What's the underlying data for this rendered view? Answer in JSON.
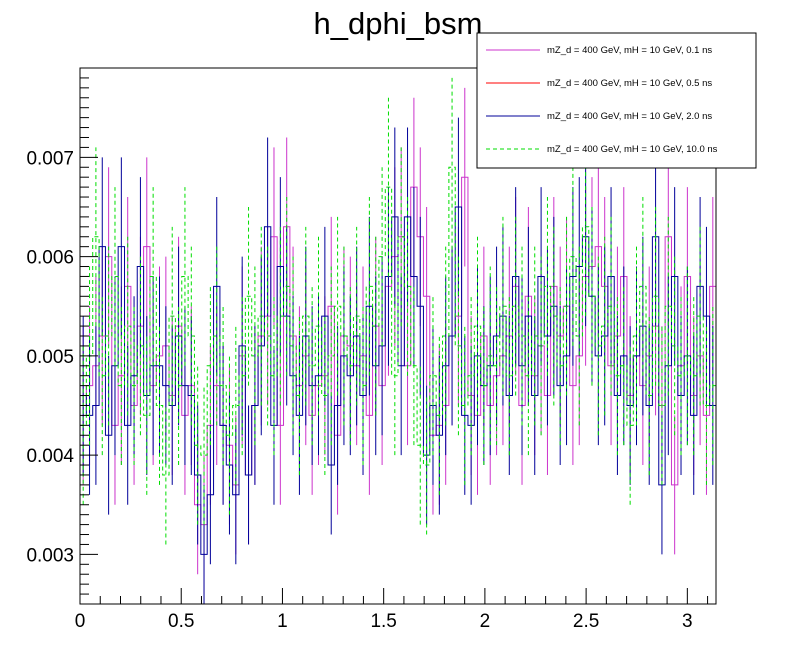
{
  "chart_data": {
    "type": "step-histogram",
    "title": "h_dphi_bsm",
    "xlabel": "",
    "ylabel": "",
    "xlim": [
      0,
      3.1416
    ],
    "ylim": [
      0.0025,
      0.0079
    ],
    "x_ticks": [
      0,
      0.5,
      1,
      1.5,
      2,
      2.5,
      3
    ],
    "x_tick_labels": [
      "0",
      "0.5",
      "1",
      "1.5",
      "2",
      "2.5",
      "3"
    ],
    "y_ticks": [
      0.003,
      0.004,
      0.005,
      0.006,
      0.007
    ],
    "y_tick_labels": [
      "0.003",
      "0.004",
      "0.005",
      "0.006",
      "0.007"
    ],
    "grid": false,
    "legend_position": "top-right",
    "bins": 100,
    "series": [
      {
        "name": "mZ_d = 400 GeV, mH = 10 GeV, 0.1 ns",
        "color": "#cc33cc",
        "dash": "solid",
        "values": [
          0.0045,
          0.0047,
          0.0049,
          0.0052,
          0.006,
          0.0043,
          0.0048,
          0.0057,
          0.0045,
          0.0053,
          0.0061,
          0.0047,
          0.005,
          0.0051,
          0.0046,
          0.0053,
          0.0044,
          0.0047,
          0.0035,
          0.0033,
          0.0043,
          0.0047,
          0.0043,
          0.0041,
          0.0037,
          0.005,
          0.0038,
          0.0045,
          0.0052,
          0.0054,
          0.0062,
          0.0043,
          0.0063,
          0.0052,
          0.0047,
          0.005,
          0.0044,
          0.0047,
          0.0048,
          0.0055,
          0.0042,
          0.0052,
          0.0051,
          0.0049,
          0.005,
          0.0044,
          0.0053,
          0.0047,
          0.0057,
          0.006,
          0.0062,
          0.0049,
          0.0067,
          0.0062,
          0.0056,
          0.0042,
          0.0043,
          0.0045,
          0.0052,
          0.0054,
          0.0068,
          0.0046,
          0.0044,
          0.0052,
          0.0045,
          0.0048,
          0.005,
          0.0052,
          0.0057,
          0.0045,
          0.0056,
          0.0048,
          0.0051,
          0.0046,
          0.0057,
          0.0052,
          0.0055,
          0.0047,
          0.005,
          0.0058,
          0.0059,
          0.0061,
          0.0057,
          0.0049,
          0.0052,
          0.0058,
          0.0046,
          0.005,
          0.0047,
          0.005,
          0.0053,
          0.0045,
          0.0062,
          0.0037,
          0.0049,
          0.0058,
          0.0046,
          0.005,
          0.0044,
          0.0057
        ],
        "errors": [
          0.0008,
          0.0008,
          0.0009,
          0.0009,
          0.0009,
          0.0008,
          0.0009,
          0.0009,
          0.0008,
          0.0009,
          0.0009,
          0.0008,
          0.0009,
          0.0009,
          0.0008,
          0.0009,
          0.0008,
          0.0008,
          0.0007,
          0.0007,
          0.0008,
          0.0008,
          0.0008,
          0.0008,
          0.0007,
          0.0009,
          0.0007,
          0.0008,
          0.0009,
          0.0009,
          0.0009,
          0.0008,
          0.0009,
          0.0009,
          0.0008,
          0.0009,
          0.0008,
          0.0008,
          0.0008,
          0.0009,
          0.0008,
          0.0009,
          0.0009,
          0.0008,
          0.0009,
          0.0008,
          0.0009,
          0.0008,
          0.0009,
          0.0009,
          0.0009,
          0.0008,
          0.0009,
          0.0009,
          0.0009,
          0.0008,
          0.0008,
          0.0008,
          0.0009,
          0.0009,
          0.0009,
          0.0008,
          0.0008,
          0.0009,
          0.0008,
          0.0008,
          0.0009,
          0.0009,
          0.0009,
          0.0008,
          0.0009,
          0.0008,
          0.0009,
          0.0008,
          0.0009,
          0.0009,
          0.0009,
          0.0008,
          0.0009,
          0.0009,
          0.0009,
          0.0009,
          0.0009,
          0.0008,
          0.0009,
          0.0009,
          0.0008,
          0.0009,
          0.0008,
          0.0009,
          0.0009,
          0.0008,
          0.0009,
          0.0007,
          0.0008,
          0.0009,
          0.0008,
          0.0009,
          0.0008,
          0.0009
        ]
      },
      {
        "name": "mZ_d = 400 GeV, mH = 10 GeV, 0.5 ns",
        "color": "#ff0000",
        "dash": "solid",
        "values": []
      },
      {
        "name": "mZ_d = 400 GeV, mH = 10 GeV, 2.0 ns",
        "color": "#000099",
        "dash": "solid",
        "values": [
          0.0046,
          0.0044,
          0.0045,
          0.0061,
          0.0042,
          0.0049,
          0.0061,
          0.0043,
          0.0048,
          0.0059,
          0.0046,
          0.0049,
          0.0049,
          0.0047,
          0.0045,
          0.0052,
          0.0047,
          0.0046,
          0.0038,
          0.003,
          0.0036,
          0.0057,
          0.0043,
          0.0039,
          0.0036,
          0.0051,
          0.0038,
          0.0045,
          0.0051,
          0.0063,
          0.0043,
          0.0059,
          0.0054,
          0.0048,
          0.0044,
          0.0052,
          0.0047,
          0.0048,
          0.0054,
          0.0039,
          0.0045,
          0.005,
          0.0048,
          0.0052,
          0.0046,
          0.0055,
          0.0049,
          0.0051,
          0.0058,
          0.0064,
          0.0049,
          0.0064,
          0.0058,
          0.0055,
          0.004,
          0.0045,
          0.0042,
          0.0049,
          0.0052,
          0.0065,
          0.0044,
          0.0043,
          0.005,
          0.0047,
          0.0049,
          0.0052,
          0.0054,
          0.0046,
          0.0058,
          0.0049,
          0.0054,
          0.0046,
          0.0058,
          0.0052,
          0.0055,
          0.0047,
          0.005,
          0.0058,
          0.0059,
          0.0062,
          0.0056,
          0.005,
          0.0052,
          0.0058,
          0.0046,
          0.005,
          0.0045,
          0.005,
          0.0053,
          0.0045,
          0.0062,
          0.0037,
          0.0049,
          0.0058,
          0.0046,
          0.005,
          0.0044,
          0.0057,
          0.0054,
          0.0045
        ],
        "errors": [
          0.0008,
          0.0008,
          0.0008,
          0.0009,
          0.0008,
          0.0009,
          0.0009,
          0.0008,
          0.0008,
          0.0009,
          0.0008,
          0.0009,
          0.0009,
          0.0008,
          0.0008,
          0.0009,
          0.0008,
          0.0008,
          0.0007,
          0.0007,
          0.0007,
          0.0009,
          0.0008,
          0.0007,
          0.0007,
          0.0009,
          0.0007,
          0.0008,
          0.0009,
          0.0009,
          0.0008,
          0.0009,
          0.0009,
          0.0008,
          0.0008,
          0.0009,
          0.0008,
          0.0008,
          0.0009,
          0.0007,
          0.0008,
          0.0009,
          0.0008,
          0.0009,
          0.0008,
          0.0009,
          0.0009,
          0.0009,
          0.0009,
          0.0009,
          0.0009,
          0.0009,
          0.0009,
          0.0009,
          0.0007,
          0.0008,
          0.0008,
          0.0009,
          0.0009,
          0.0009,
          0.0008,
          0.0008,
          0.0009,
          0.0008,
          0.0009,
          0.0009,
          0.0009,
          0.0008,
          0.0009,
          0.0009,
          0.0009,
          0.0008,
          0.0009,
          0.0009,
          0.0009,
          0.0008,
          0.0009,
          0.0009,
          0.0009,
          0.0009,
          0.0009,
          0.0009,
          0.0009,
          0.0009,
          0.0008,
          0.0009,
          0.0008,
          0.0009,
          0.0009,
          0.0008,
          0.0009,
          0.0007,
          0.0009,
          0.0009,
          0.0008,
          0.0009,
          0.0008,
          0.0009,
          0.0009,
          0.0008
        ]
      },
      {
        "name": "mZ_d = 400 GeV, mH = 10 GeV, 10.0 ns",
        "color": "#00dd00",
        "dash": "dashed",
        "values": [
          0.0043,
          0.005,
          0.0062,
          0.0048,
          0.0052,
          0.0058,
          0.0047,
          0.0053,
          0.0047,
          0.0051,
          0.0044,
          0.0058,
          0.0045,
          0.0038,
          0.0054,
          0.0047,
          0.0058,
          0.0052,
          0.0041,
          0.004,
          0.0049,
          0.0052,
          0.0047,
          0.0042,
          0.0045,
          0.0048,
          0.0056,
          0.005,
          0.0054,
          0.0052,
          0.0048,
          0.0054,
          0.0057,
          0.0051,
          0.0046,
          0.0054,
          0.0049,
          0.0053,
          0.0046,
          0.005,
          0.0055,
          0.0052,
          0.0049,
          0.0054,
          0.0047,
          0.0057,
          0.0053,
          0.006,
          0.0067,
          0.0048,
          0.0062,
          0.0057,
          0.0049,
          0.0041,
          0.0039,
          0.0048,
          0.0044,
          0.0052,
          0.0069,
          0.0051,
          0.0045,
          0.0048,
          0.0053,
          0.0047,
          0.005,
          0.0049,
          0.0055,
          0.0048,
          0.0055,
          0.0052,
          0.0048,
          0.0052,
          0.0051,
          0.0057,
          0.0054,
          0.0049,
          0.0055,
          0.006,
          0.0052,
          0.0063,
          0.0056,
          0.0051,
          0.0053,
          0.0055,
          0.0048,
          0.0049,
          0.0043,
          0.0052,
          0.0057,
          0.0046,
          0.0056,
          0.0045,
          0.0055,
          0.0051,
          0.0048,
          0.005,
          0.0048,
          0.0054,
          0.0045,
          0.0047
        ],
        "errors": [
          0.0008,
          0.0009,
          0.0009,
          0.0008,
          0.0009,
          0.0009,
          0.0008,
          0.0009,
          0.0008,
          0.0009,
          0.0008,
          0.0009,
          0.0008,
          0.0007,
          0.0009,
          0.0008,
          0.0009,
          0.0009,
          0.0008,
          0.0007,
          0.0008,
          0.0009,
          0.0008,
          0.0008,
          0.0008,
          0.0008,
          0.0009,
          0.0009,
          0.0009,
          0.0009,
          0.0008,
          0.0009,
          0.0009,
          0.0009,
          0.0008,
          0.0009,
          0.0008,
          0.0009,
          0.0008,
          0.0009,
          0.0009,
          0.0009,
          0.0008,
          0.0009,
          0.0008,
          0.0009,
          0.0009,
          0.0009,
          0.0009,
          0.0008,
          0.0009,
          0.0009,
          0.0008,
          0.0008,
          0.0007,
          0.0008,
          0.0008,
          0.0009,
          0.0009,
          0.0009,
          0.0008,
          0.0008,
          0.0009,
          0.0008,
          0.0009,
          0.0008,
          0.0009,
          0.0008,
          0.0009,
          0.0009,
          0.0008,
          0.0009,
          0.0009,
          0.0009,
          0.0009,
          0.0008,
          0.0009,
          0.0009,
          0.0009,
          0.0009,
          0.0009,
          0.0009,
          0.0009,
          0.0009,
          0.0008,
          0.0008,
          0.0008,
          0.0009,
          0.0009,
          0.0008,
          0.0009,
          0.0008,
          0.0009,
          0.0009,
          0.0008,
          0.0009,
          0.0008,
          0.0009,
          0.0008,
          0.0008
        ]
      }
    ]
  }
}
